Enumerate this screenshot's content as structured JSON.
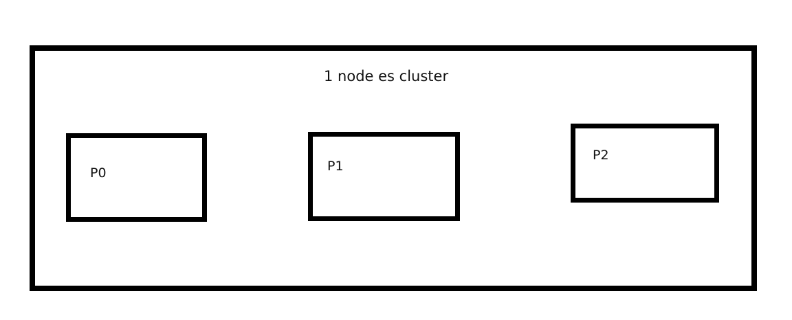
{
  "diagram": {
    "cluster": {
      "title": "1 node es cluster"
    },
    "partitions": [
      {
        "label": "P0"
      },
      {
        "label": "P1"
      },
      {
        "label": "P2"
      }
    ]
  }
}
